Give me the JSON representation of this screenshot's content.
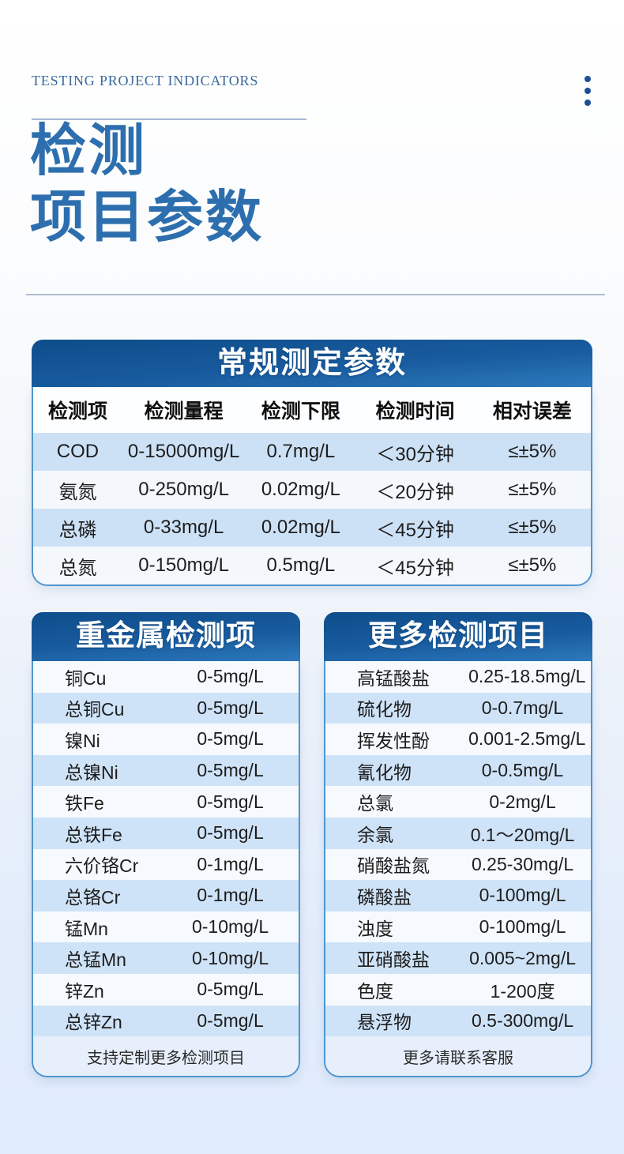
{
  "header": {
    "eyebrow": "TESTING PROJECT INDICATORS",
    "title_line1": "检测",
    "title_line2": "项目参数",
    "menu_icon": "vertical-ellipsis"
  },
  "colors": {
    "accent_blue": "#2d6fae",
    "card_header_top": "#0e4d8b",
    "card_header_bottom": "#2c7abc",
    "row_blue": "#cde1f6",
    "row_light": "#f4f8fd",
    "card_border": "#4e95ce",
    "page_bottom": "#e0ebfc"
  },
  "main_table": {
    "title": "常规测定参数",
    "columns": [
      "检测项",
      "检测量程",
      "检测下限",
      "检测时间",
      "相对误差"
    ],
    "rows": [
      [
        "COD",
        "0-15000mg/L",
        "0.7mg/L",
        "＜30分钟",
        "≤±5%"
      ],
      [
        "氨氮",
        "0-250mg/L",
        "0.02mg/L",
        "＜20分钟",
        "≤±5%"
      ],
      [
        "总磷",
        "0-33mg/L",
        "0.02mg/L",
        "＜45分钟",
        "≤±5%"
      ],
      [
        "总氮",
        "0-150mg/L",
        "0.5mg/L",
        "＜45分钟",
        "≤±5%"
      ]
    ]
  },
  "heavy_metal_table": {
    "title": "重金属检测项",
    "rows": [
      [
        "铜Cu",
        "0-5mg/L"
      ],
      [
        "总铜Cu",
        "0-5mg/L"
      ],
      [
        "镍Ni",
        "0-5mg/L"
      ],
      [
        "总镍Ni",
        "0-5mg/L"
      ],
      [
        "铁Fe",
        "0-5mg/L"
      ],
      [
        "总铁Fe",
        "0-5mg/L"
      ],
      [
        "六价铬Cr",
        "0-1mg/L"
      ],
      [
        "总铬Cr",
        "0-1mg/L"
      ],
      [
        "锰Mn",
        "0-10mg/L"
      ],
      [
        "总锰Mn",
        "0-10mg/L"
      ],
      [
        "锌Zn",
        "0-5mg/L"
      ],
      [
        "总锌Zn",
        "0-5mg/L"
      ]
    ],
    "footer": "支持定制更多检测项目"
  },
  "more_items_table": {
    "title": "更多检测项目",
    "rows": [
      [
        "高锰酸盐",
        "0.25-18.5mg/L"
      ],
      [
        "硫化物",
        "0-0.7mg/L"
      ],
      [
        "挥发性酚",
        "0.001-2.5mg/L"
      ],
      [
        "氰化物",
        "0-0.5mg/L"
      ],
      [
        "总氯",
        "0-2mg/L"
      ],
      [
        "余氯",
        "0.1～20mg/L"
      ],
      [
        "硝酸盐氮",
        "0.25-30mg/L"
      ],
      [
        "磷酸盐",
        "0-100mg/L"
      ],
      [
        "浊度",
        "0-100mg/L"
      ],
      [
        "亚硝酸盐",
        "0.005~2mg/L"
      ],
      [
        "色度",
        "1-200度"
      ],
      [
        "悬浮物",
        "0.5-300mg/L"
      ]
    ],
    "footer": "更多请联系客服"
  }
}
